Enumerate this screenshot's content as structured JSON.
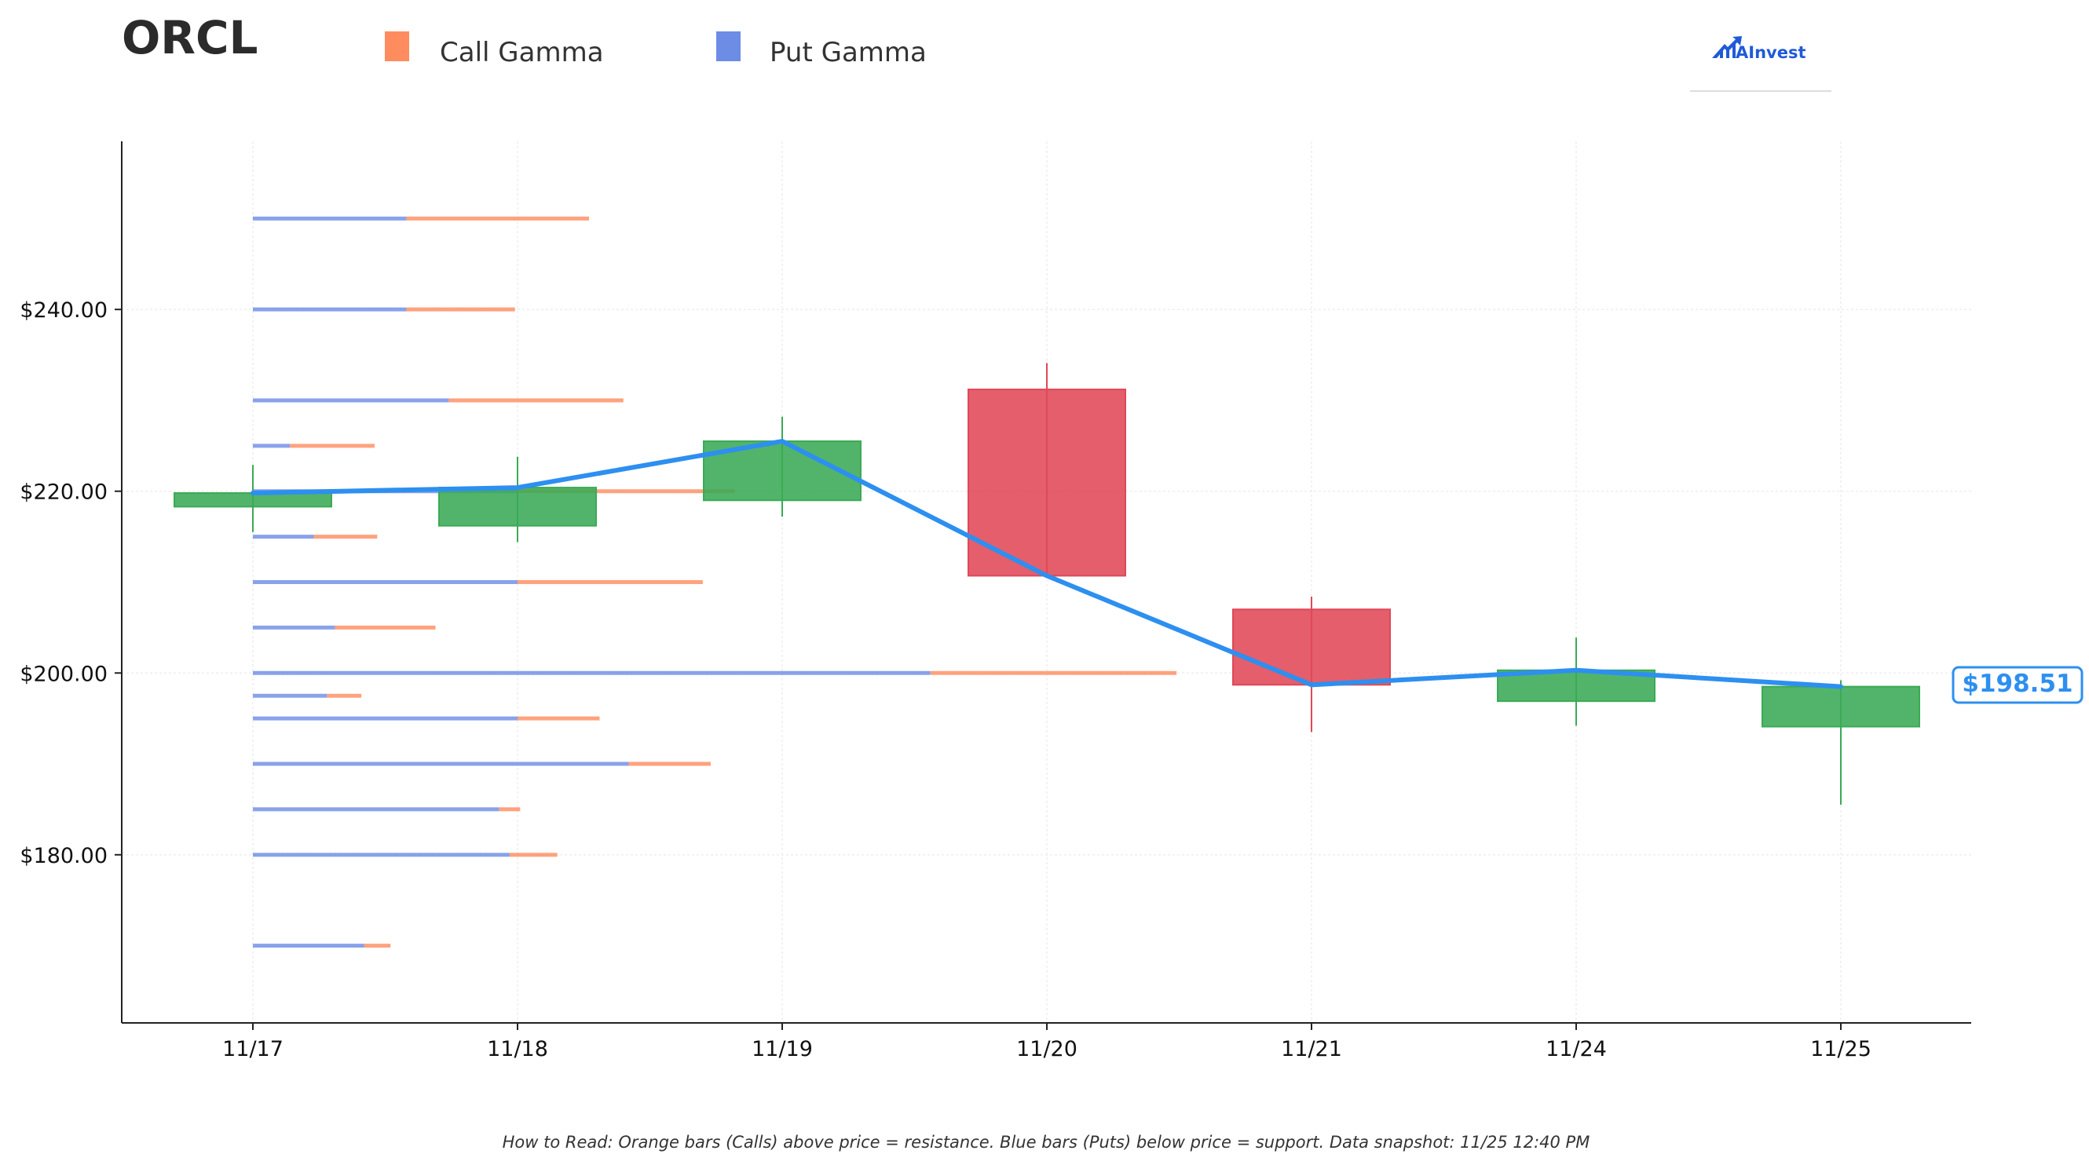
{
  "ticker": "ORCL",
  "legend": [
    {
      "label": "Call Gamma",
      "color": "#ff8c5e"
    },
    {
      "label": "Put Gamma",
      "color": "#6c8ce6"
    }
  ],
  "logo": {
    "text": "AInvest",
    "icon": "ainvest-logo-icon"
  },
  "footnote": "How to Read: Orange bars (Calls) above price = resistance. Blue bars (Puts) below price = support. Data snapshot: 11/25 12:40 PM",
  "colors": {
    "up": "#3aaa55",
    "down": "#e04858",
    "line": "#2d8ff0",
    "call": "#ff8c5e",
    "put": "#6c8ce6",
    "axis": "#222222",
    "grid": "#eeeeee"
  },
  "chart_data": {
    "type": "candlestick",
    "grid": true,
    "y_axis_format": "$",
    "ylim": [
      161.5,
      258.5
    ],
    "yticks": [
      {
        "value": 180,
        "label": "$180.00"
      },
      {
        "value": 200,
        "label": "$200.00"
      },
      {
        "value": 220,
        "label": "$220.00"
      },
      {
        "value": 240,
        "label": "$240.00"
      }
    ],
    "categories": [
      "11/17",
      "11/18",
      "11/19",
      "11/20",
      "11/21",
      "11/24",
      "11/25"
    ],
    "candles": [
      {
        "date": "11/17",
        "open": 218.3,
        "high": 222.9,
        "low": 215.5,
        "close": 219.8
      },
      {
        "date": "11/18",
        "open": 216.2,
        "high": 223.8,
        "low": 214.4,
        "close": 220.4
      },
      {
        "date": "11/19",
        "open": 219.0,
        "high": 228.2,
        "low": 217.2,
        "close": 225.5
      },
      {
        "date": "11/20",
        "open": 231.2,
        "high": 234.1,
        "low": 210.6,
        "close": 210.7
      },
      {
        "date": "11/21",
        "open": 207.0,
        "high": 208.4,
        "low": 193.5,
        "close": 198.7
      },
      {
        "date": "11/24",
        "open": 196.9,
        "high": 203.9,
        "low": 194.2,
        "close": 200.3
      },
      {
        "date": "11/25",
        "open": 194.1,
        "high": 199.2,
        "low": 185.5,
        "close": 198.5
      }
    ],
    "price_line": {
      "values": [
        219.8,
        220.4,
        225.5,
        210.7,
        198.7,
        200.3,
        198.5
      ]
    },
    "last_price_label": "$198.51",
    "gamma_levels": [
      {
        "strike": 170,
        "put": 0.42,
        "call": 0.1
      },
      {
        "strike": 180,
        "put": 0.97,
        "call": 0.18
      },
      {
        "strike": 185,
        "put": 0.93,
        "call": 0.08
      },
      {
        "strike": 190,
        "put": 1.42,
        "call": 0.31
      },
      {
        "strike": 195,
        "put": 1.0,
        "call": 0.31
      },
      {
        "strike": 197.5,
        "put": 0.28,
        "call": 0.13
      },
      {
        "strike": 200,
        "put": 2.56,
        "call": 0.93
      },
      {
        "strike": 205,
        "put": 0.31,
        "call": 0.38
      },
      {
        "strike": 210,
        "put": 1.0,
        "call": 0.7
      },
      {
        "strike": 215,
        "put": 0.23,
        "call": 0.24
      },
      {
        "strike": 220,
        "put": 1.0,
        "call": 0.82
      },
      {
        "strike": 225,
        "put": 0.14,
        "call": 0.32
      },
      {
        "strike": 230,
        "put": 0.74,
        "call": 0.66
      },
      {
        "strike": 240,
        "put": 0.58,
        "call": 0.41
      },
      {
        "strike": 250,
        "put": 0.58,
        "call": 0.69
      }
    ]
  }
}
